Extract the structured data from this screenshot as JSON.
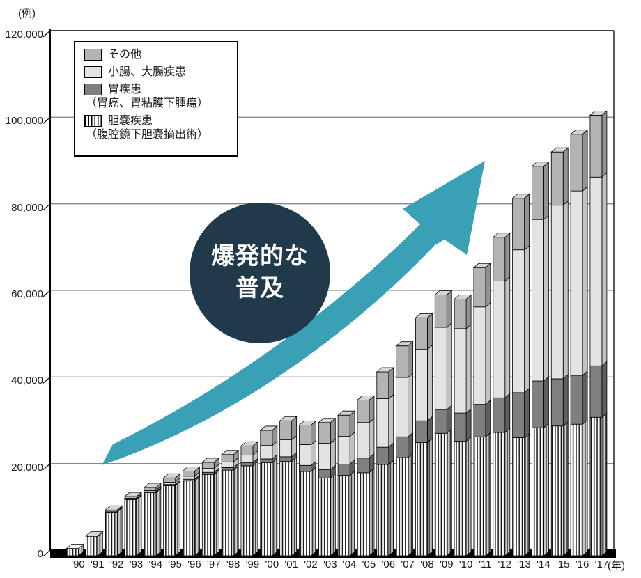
{
  "axis": {
    "unit_y": "(例)",
    "unit_x": "(年)"
  },
  "annotation": {
    "line1": "爆発的な",
    "line2": "普及"
  },
  "colors": {
    "arrow": "#39a0b5",
    "circle": "#20394b",
    "grid": "#8a8a8a",
    "frame": "#000000",
    "floor": "#000000"
  },
  "legend": {
    "items": [
      {
        "label": "その他",
        "sublabel": "",
        "swatch": "other"
      },
      {
        "label": "小腸、大腸疾患",
        "sublabel": "",
        "swatch": "int"
      },
      {
        "label": "胃疾患",
        "sublabel": "（胃癌、胃粘膜下腫瘍）",
        "swatch": "sto"
      },
      {
        "label": "胆嚢疾患",
        "sublabel": "（腹腔鏡下胆嚢摘出術）",
        "swatch": "gall"
      }
    ]
  },
  "chart_data": {
    "type": "bar",
    "stacked": true,
    "style": "3d",
    "title": "",
    "xlabel": "(年)",
    "ylabel": "(例)",
    "ylim": [
      0,
      120000
    ],
    "ytick_interval": 20000,
    "ytick_labels": [
      "0",
      "20,000",
      "40,000",
      "60,000",
      "80,000",
      "100,000",
      "120,000"
    ],
    "grid": true,
    "legend_position": "top-left",
    "categories": [
      "'90",
      "'91",
      "'92",
      "'93",
      "'94",
      "'95",
      "'96",
      "'97",
      "'98",
      "'99",
      "'00",
      "'01",
      "'02",
      "'03",
      "'04",
      "'05",
      "'06",
      "'07",
      "'08",
      "'09",
      "'10",
      "'11",
      "'12",
      "'13",
      "'14",
      "'15",
      "'16",
      "'17"
    ],
    "series": [
      {
        "name": "胆嚢疾患（腹腔鏡下胆嚢摘出術）",
        "pattern": true,
        "color": "#ffffff",
        "side": "#c8c8c8",
        "cap": "#ffffff",
        "values": [
          700,
          3500,
          9100,
          12000,
          13600,
          15200,
          16300,
          17800,
          18800,
          19800,
          20500,
          20800,
          18500,
          17000,
          17600,
          18200,
          20100,
          21700,
          25200,
          27300,
          25500,
          26500,
          27500,
          26300,
          28600,
          29000,
          29400,
          31000
        ]
      },
      {
        "name": "胃疾患（胃癌、胃粘膜下腫瘍）",
        "pattern": false,
        "color": "#7f7f7f",
        "side": "#5f5f5f",
        "cap": "#a5a5a5",
        "values": [
          0,
          0,
          0,
          100,
          200,
          300,
          400,
          500,
          600,
          700,
          900,
          1100,
          1400,
          1900,
          2600,
          3400,
          4000,
          4800,
          5000,
          5500,
          6500,
          7500,
          8000,
          10400,
          10800,
          10900,
          11300,
          11900
        ]
      },
      {
        "name": "小腸、大腸疾患",
        "pattern": false,
        "color": "#e3e3e3",
        "side": "#c2c2c2",
        "cap": "#f0f0f0",
        "values": [
          0,
          50,
          200,
          200,
          300,
          500,
          700,
          900,
          1300,
          1800,
          3100,
          3900,
          4800,
          6100,
          6400,
          8200,
          11200,
          13700,
          16500,
          19000,
          19500,
          22500,
          27000,
          33000,
          37300,
          40100,
          42600,
          43600
        ]
      },
      {
        "name": "その他",
        "pattern": false,
        "color": "#b3b3b3",
        "side": "#929292",
        "cap": "#d5d5d5",
        "values": [
          0,
          50,
          300,
          400,
          700,
          1000,
          1200,
          1400,
          1700,
          2100,
          3500,
          4400,
          4500,
          4800,
          4900,
          5200,
          6200,
          7300,
          7300,
          7500,
          6800,
          9100,
          10100,
          11900,
          12300,
          12300,
          13100,
          14300
        ]
      }
    ],
    "annotation_text": "爆発的な普及"
  }
}
